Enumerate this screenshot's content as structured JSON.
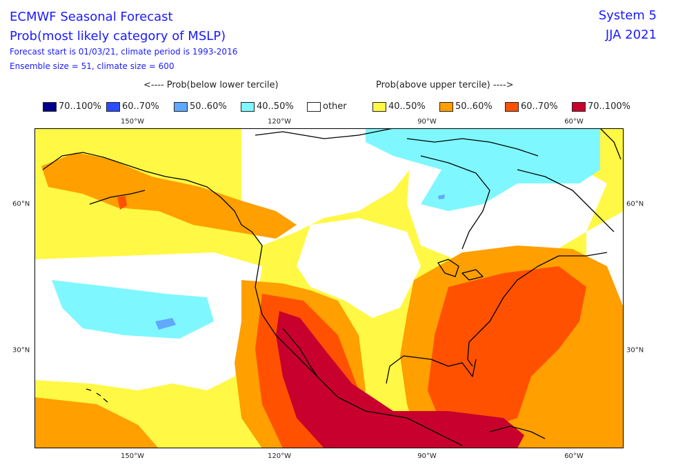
{
  "header": {
    "title": "ECMWF Seasonal Forecast",
    "subtitle": "Prob(most likely category of MSLP)",
    "forecast_info": "Forecast start is 01/03/21, climate period is 1993-2016",
    "ensemble_info": "Ensemble size = 51, climate size = 600",
    "system": "System 5",
    "season": "JJA 2021"
  },
  "legend": {
    "below_label": "<---- Prob(below lower tercile)",
    "above_label": "Prob(above upper tercile) ---->",
    "items": [
      {
        "label": "70..100%",
        "color": "#00008b"
      },
      {
        "label": "60..70%",
        "color": "#2a4eff"
      },
      {
        "label": "50..60%",
        "color": "#61a8ff"
      },
      {
        "label": "40..50%",
        "color": "#7ff7ff"
      },
      {
        "label": "other",
        "color": "#ffffff"
      },
      {
        "label": "40..50%",
        "color": "#fff845"
      },
      {
        "label": "50..60%",
        "color": "#ff9f00"
      },
      {
        "label": "60..70%",
        "color": "#ff5100"
      },
      {
        "label": "70..100%",
        "color": "#c8002d"
      }
    ]
  },
  "axes": {
    "lon_labels": [
      "150°W",
      "120°W",
      "90°W",
      "60°W"
    ],
    "lat_labels": [
      "60°N",
      "30°N"
    ]
  }
}
